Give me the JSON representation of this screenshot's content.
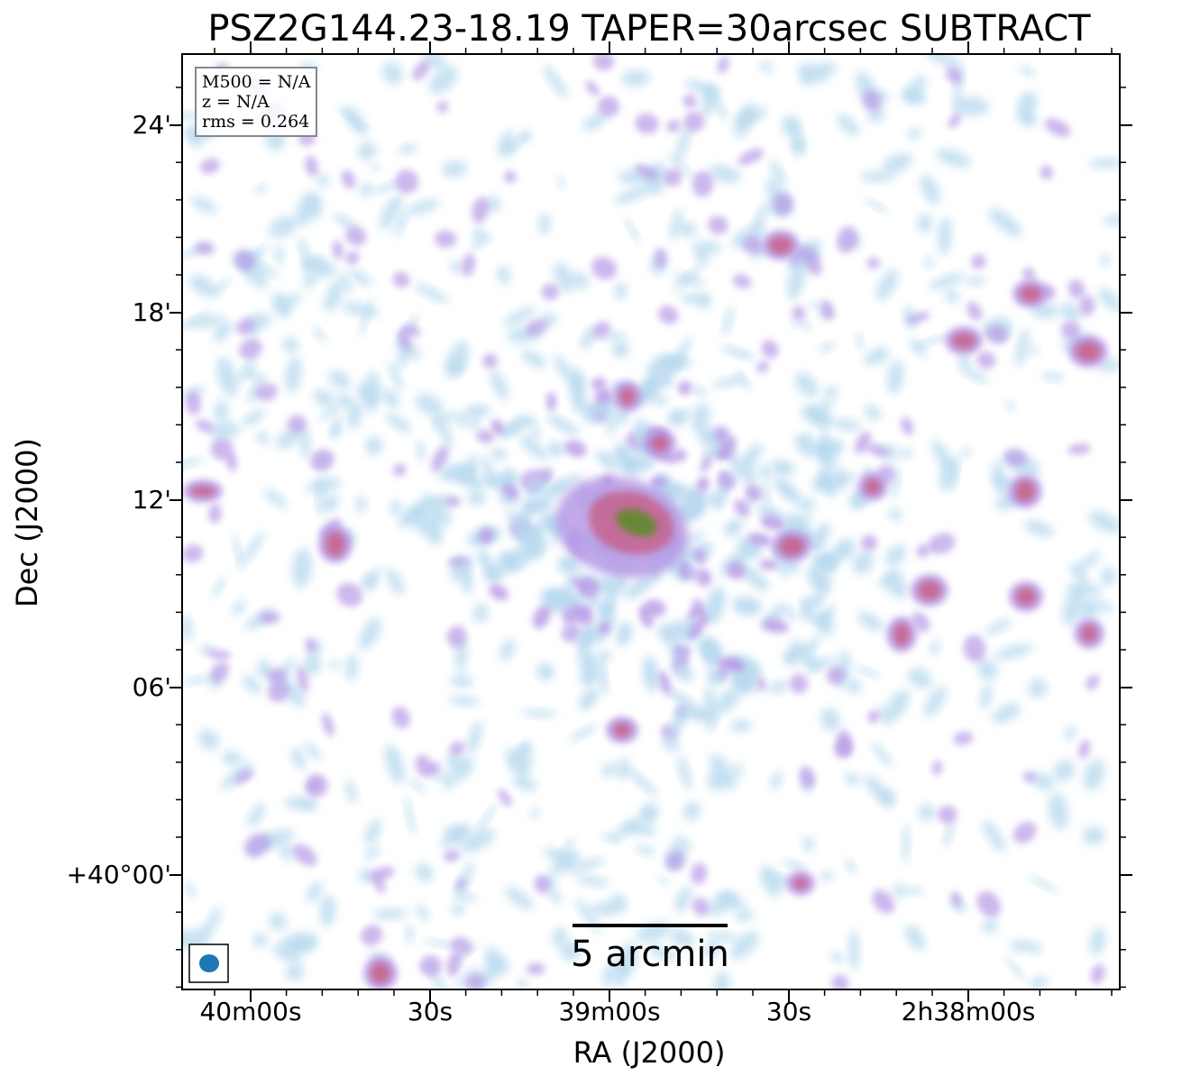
{
  "title": "PSZ2G144.23-18.19 TAPER=30arcsec SUBTRACT",
  "xlabel": "RA (J2000)",
  "ylabel": "Dec (J2000)",
  "x_ticks": [
    "40m00s",
    "30s",
    "39m00s",
    "30s",
    "2h38m00s"
  ],
  "y_ticks": [
    "24'",
    "18'",
    "12'",
    "06'",
    "+40°00'"
  ],
  "info": {
    "m500": "M500 = N/A",
    "z": "z = N/A",
    "rms": "rms = 0.264"
  },
  "scalebar": {
    "label": "5 arcmin",
    "size_arcmin": 5
  },
  "beam": {
    "color": "#1f77b4"
  },
  "colors": {
    "faint": "#b6d8ee",
    "mid": "#b69ae6",
    "bright": "#c8557a",
    "peak": "#5f8a2c"
  },
  "image_description": "radio continuum noise map with bright central compact emission"
}
